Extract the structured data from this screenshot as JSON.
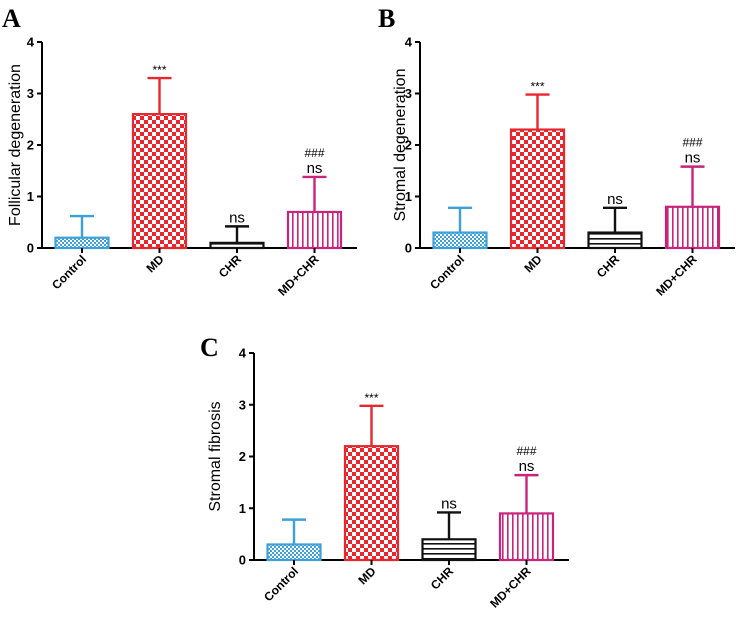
{
  "chart_data": [
    {
      "type": "bar",
      "panel": "A",
      "ylabel": "Follicular degeneration",
      "ylim": [
        0,
        4
      ],
      "yticks": [
        0,
        1,
        2,
        3,
        4
      ],
      "categories": [
        "Control",
        "MD",
        "CHR",
        "MD+CHR"
      ],
      "values": [
        0.2,
        2.6,
        0.1,
        0.7
      ],
      "errors": [
        0.42,
        0.7,
        0.32,
        0.68
      ],
      "annotations": [
        [],
        [
          "***"
        ],
        [
          "ns"
        ],
        [
          "###",
          "ns"
        ]
      ]
    },
    {
      "type": "bar",
      "panel": "B",
      "ylabel": "Stromal degeneration",
      "ylim": [
        0,
        4
      ],
      "yticks": [
        0,
        1,
        2,
        3,
        4
      ],
      "categories": [
        "Control",
        "MD",
        "CHR",
        "MD+CHR"
      ],
      "values": [
        0.3,
        2.3,
        0.3,
        0.8
      ],
      "errors": [
        0.48,
        0.68,
        0.48,
        0.78
      ],
      "annotations": [
        [],
        [
          "***"
        ],
        [
          "ns"
        ],
        [
          "###",
          "ns"
        ]
      ]
    },
    {
      "type": "bar",
      "panel": "C",
      "ylabel": "Stromal fibrosis",
      "ylim": [
        0,
        4
      ],
      "yticks": [
        0,
        1,
        2,
        3,
        4
      ],
      "categories": [
        "Control",
        "MD",
        "CHR",
        "MD+CHR"
      ],
      "values": [
        0.3,
        2.2,
        0.4,
        0.9
      ],
      "errors": [
        0.48,
        0.78,
        0.52,
        0.74
      ],
      "annotations": [
        [],
        [
          "***"
        ],
        [
          "ns"
        ],
        [
          "###",
          "ns"
        ]
      ]
    }
  ],
  "colors": {
    "Control": "#3ea0d8",
    "MD": "#e8262d",
    "CHR": "#111111",
    "MD+CHR": "#c8247a",
    "axis": "#000000"
  }
}
